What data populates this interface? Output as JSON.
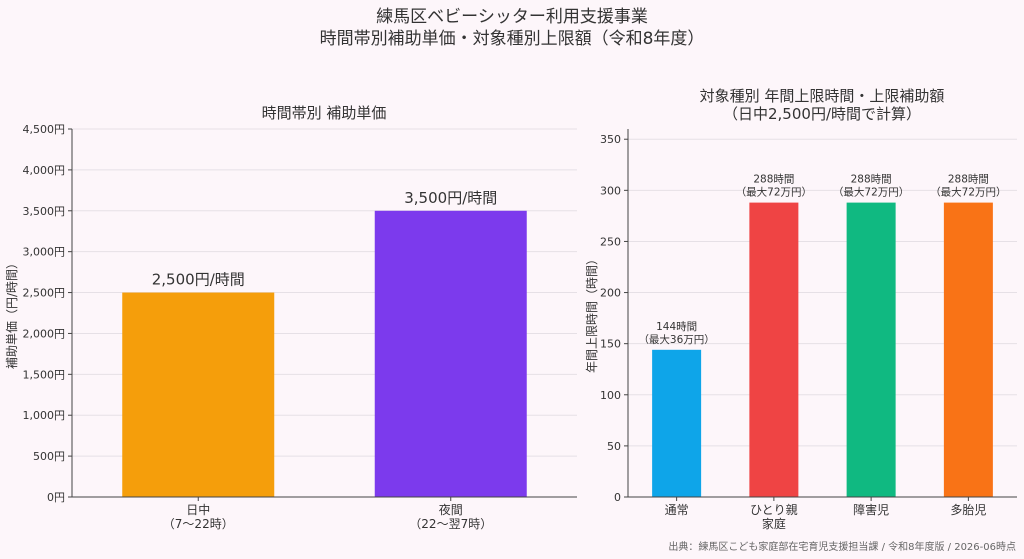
{
  "title_line1": "練馬区ベビーシッター利用支援事業",
  "title_line2": "時間帯別補助単価・対象種別上限額（令和8年度）",
  "source": "出典：練馬区こども家庭部在宅育児支援担当課 / 令和8年度版 / 2026-06時点",
  "chart_data": [
    {
      "type": "bar",
      "title": "時間帯別 補助単価",
      "ylabel": "補助単価（円/時間）",
      "xlabel": "",
      "ylim": [
        0,
        4500
      ],
      "yticks": [
        "0円",
        "500円",
        "1,000円",
        "1,500円",
        "2,000円",
        "2,500円",
        "3,000円",
        "3,500円",
        "4,000円",
        "4,500円"
      ],
      "categories": [
        {
          "line1": "日中",
          "line2": "（7〜22時）"
        },
        {
          "line1": "夜間",
          "line2": "（22〜翌7時）"
        }
      ],
      "values": [
        2500,
        3500
      ],
      "labels": [
        "2,500円/時間",
        "3,500円/時間"
      ],
      "colors": [
        "#f59e0b",
        "#7c3aed"
      ],
      "grid": true
    },
    {
      "type": "bar",
      "title_line1": "対象種別 年間上限時間・上限補助額",
      "title_line2": "（日中2,500円/時間で計算）",
      "ylabel": "年間上限時間（時間）",
      "xlabel": "",
      "ylim": [
        0,
        360
      ],
      "yticks": [
        "0",
        "50",
        "100",
        "150",
        "200",
        "250",
        "300",
        "350"
      ],
      "categories": [
        {
          "line1": "通常",
          "line2": ""
        },
        {
          "line1": "ひとり親",
          "line2": "家庭"
        },
        {
          "line1": "障害児",
          "line2": ""
        },
        {
          "line1": "多胎児",
          "line2": ""
        }
      ],
      "values": [
        144,
        288,
        288,
        288
      ],
      "labels": [
        {
          "l1": "144時間",
          "l2": "（最大36万円）"
        },
        {
          "l1": "288時間",
          "l2": "（最大72万円）"
        },
        {
          "l1": "288時間",
          "l2": "（最大72万円）"
        },
        {
          "l1": "288時間",
          "l2": "（最大72万円）"
        }
      ],
      "colors": [
        "#0ea5e9",
        "#ef4444",
        "#10b981",
        "#f97316"
      ],
      "grid": true
    }
  ]
}
